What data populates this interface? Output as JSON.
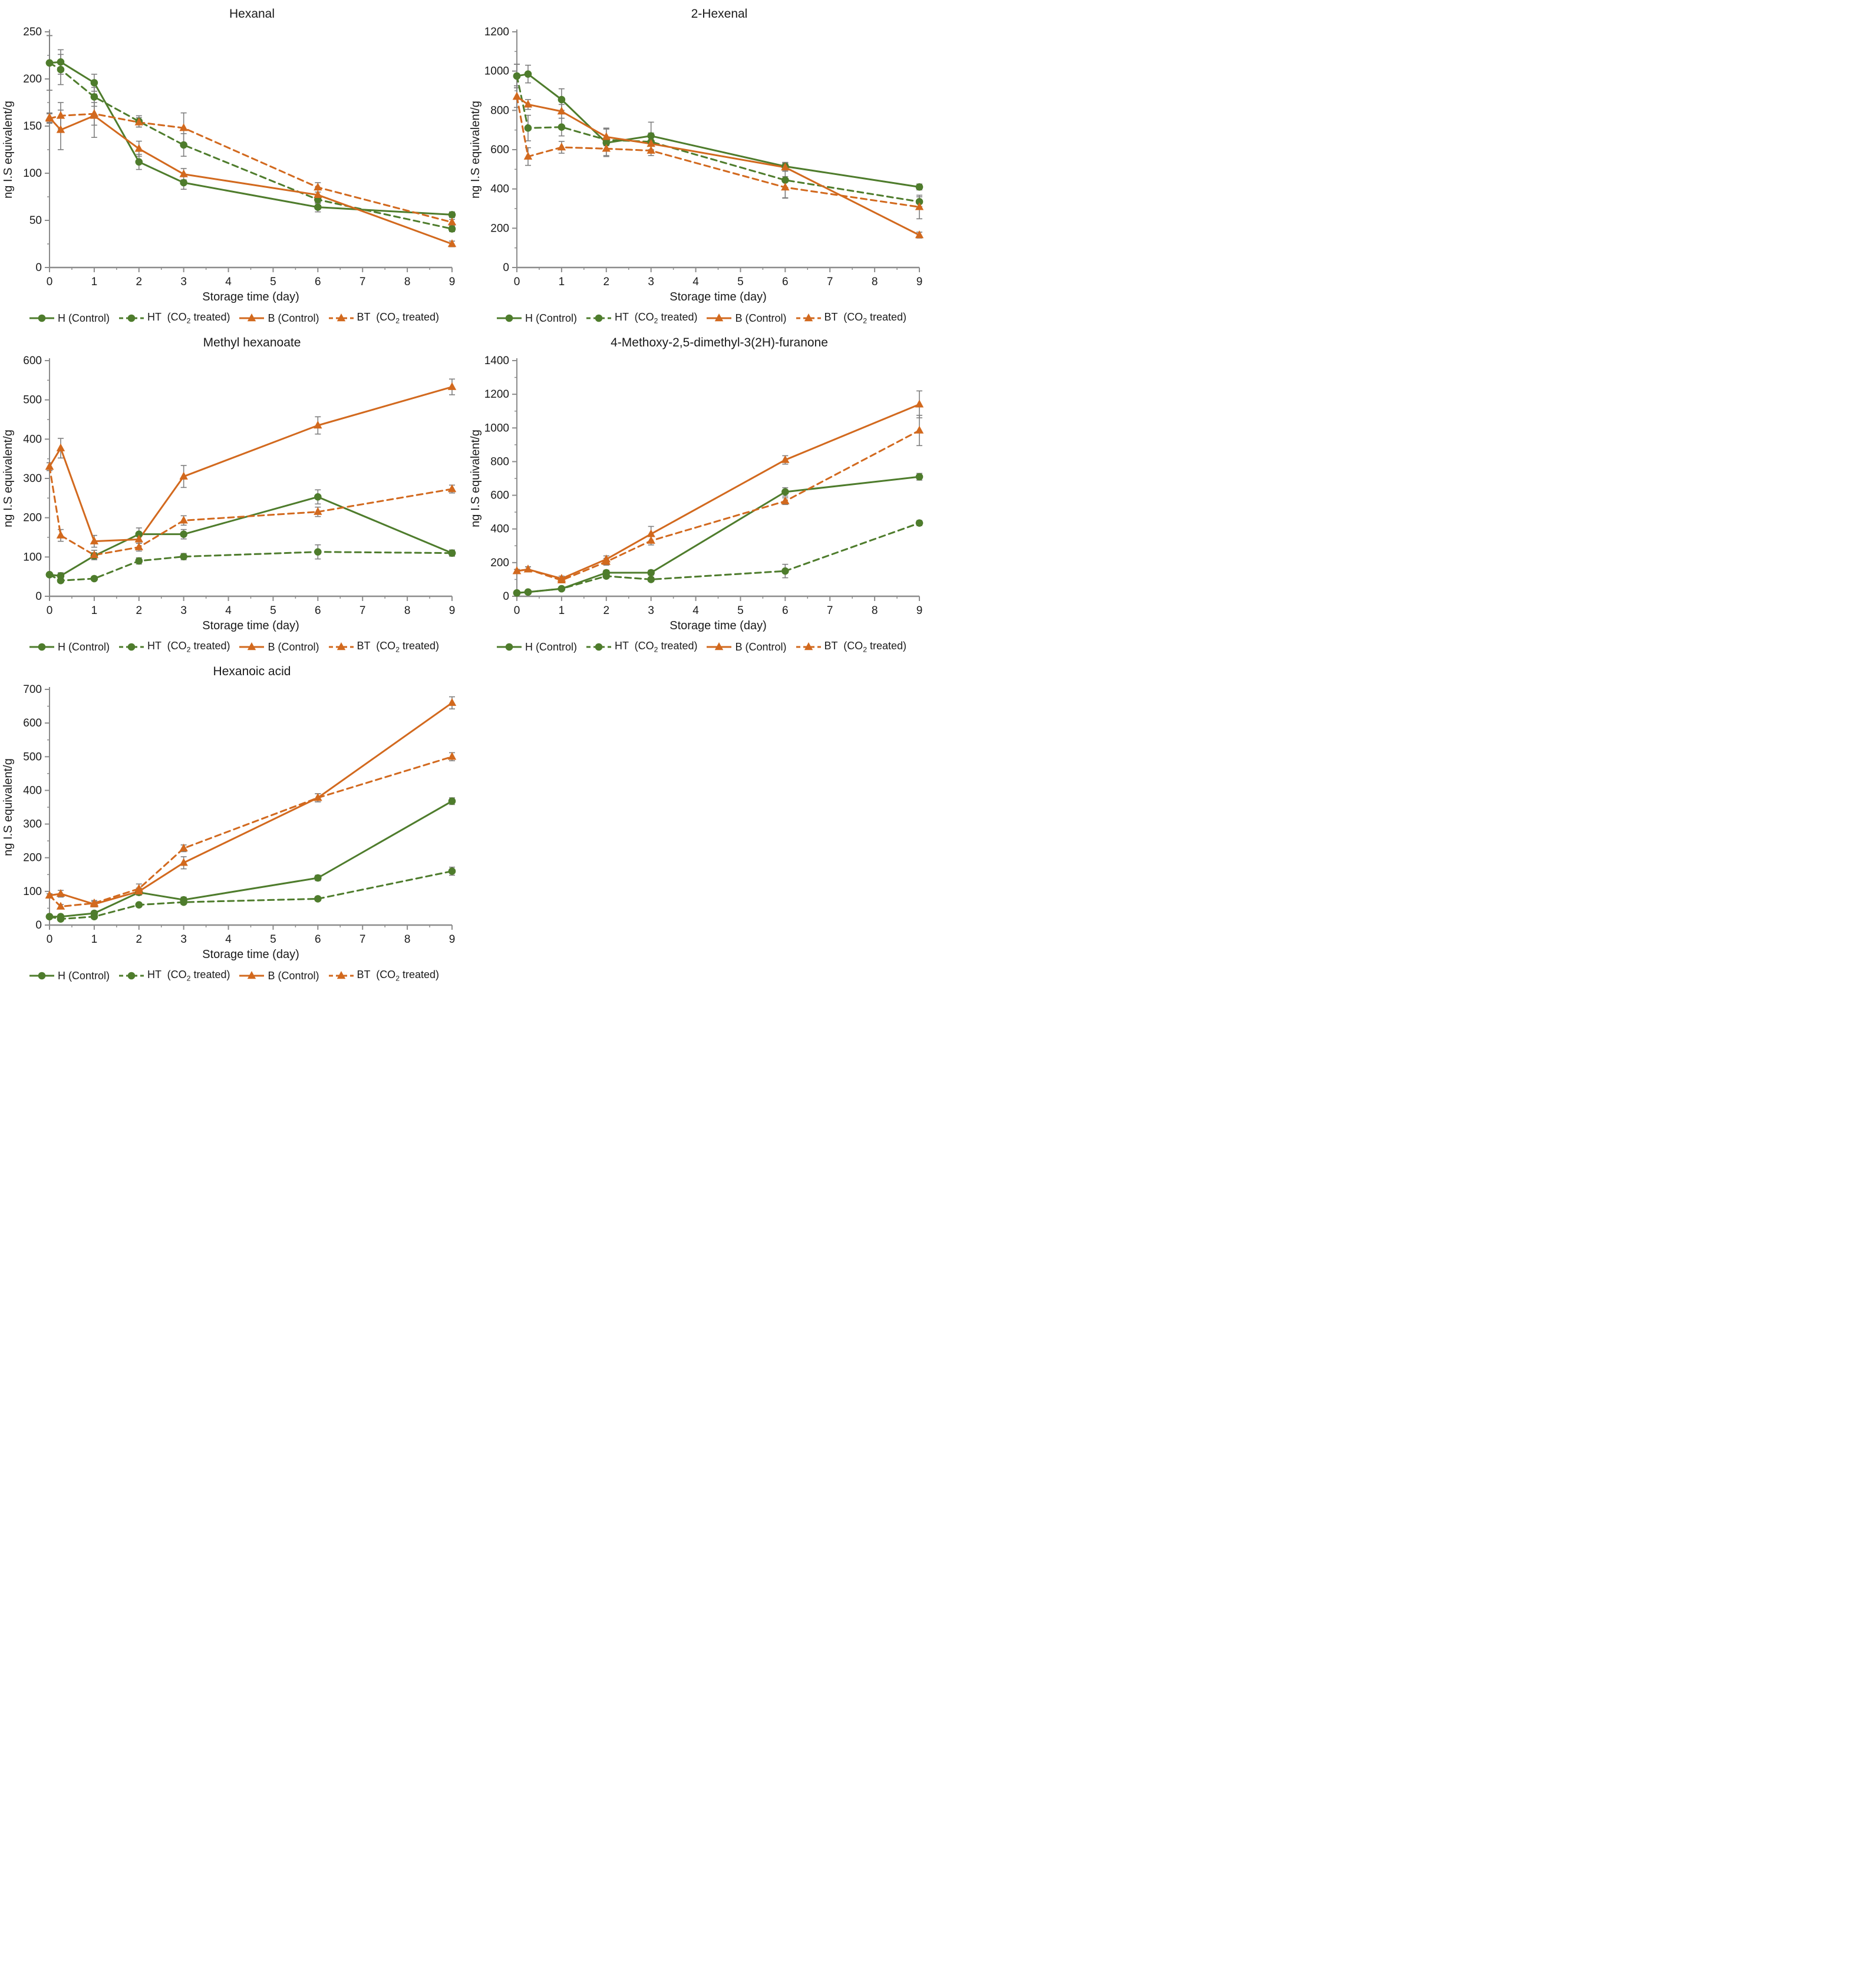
{
  "page": {
    "background": "#ffffff"
  },
  "colors": {
    "green": "#4e7c2c",
    "orange": "#d2691e",
    "error_bar": "#7f7f7f",
    "axis_line": "#8c8c8c",
    "tick_text": "#1a1a1a",
    "title_text": "#1a1a1a"
  },
  "series_styles": {
    "H": {
      "label": "H (Control)",
      "color": "#4e7c2c",
      "line": "solid",
      "marker": "circle"
    },
    "HT": {
      "label": "HT (CO2 treated)",
      "color": "#4e7c2c",
      "line": "dashed",
      "marker": "circle"
    },
    "B": {
      "label": "B (Control)",
      "color": "#d2691e",
      "line": "solid",
      "marker": "triangle"
    },
    "BT": {
      "label": "BT (CO2 treated)",
      "color": "#d2691e",
      "line": "dashed",
      "marker": "triangle"
    }
  },
  "legend": {
    "position": "bottom",
    "items": [
      {
        "key": "H",
        "pre": "H (Control)"
      },
      {
        "key": "HT",
        "pre": "HT  (CO",
        "sub": "2",
        "post": " treated)"
      },
      {
        "key": "B",
        "pre": "B (Control)"
      },
      {
        "key": "BT",
        "pre": "BT  (CO",
        "sub": "2",
        "post": " treated)"
      }
    ]
  },
  "chart_data": [
    {
      "type": "line",
      "title": "Hexanal",
      "xlabel": "Storage time (day)",
      "ylabel": "ng I.S equivalent/g",
      "xlim": [
        0,
        9
      ],
      "xticks": [
        0,
        1,
        2,
        3,
        4,
        5,
        6,
        7,
        8,
        9
      ],
      "ylim": [
        0,
        250
      ],
      "ytick_step": 50,
      "grid": false,
      "x": [
        0,
        0.25,
        1,
        2,
        3,
        6,
        9
      ],
      "series": [
        {
          "key": "H",
          "name": "H (Control)",
          "values": [
            217,
            218,
            196,
            112,
            90,
            64,
            56
          ],
          "errors": [
            29,
            13,
            9,
            8,
            7,
            5,
            3
          ]
        },
        {
          "key": "HT",
          "name": "HT (CO2 treated)",
          "values": [
            217,
            210,
            181,
            155,
            130,
            72,
            41
          ],
          "errors": [
            29,
            16,
            10,
            6,
            12,
            4,
            3
          ]
        },
        {
          "key": "B",
          "name": "B (Control)",
          "values": [
            159,
            146,
            161,
            126,
            99,
            77,
            25
          ],
          "errors": [
            5,
            21,
            23,
            8,
            6,
            8,
            3
          ]
        },
        {
          "key": "BT",
          "name": "BT (CO2 treated)",
          "values": [
            158,
            161,
            163,
            154,
            148,
            85,
            48
          ],
          "errors": [
            5,
            14,
            12,
            5,
            16,
            5,
            3
          ]
        }
      ]
    },
    {
      "type": "line",
      "title": "2-Hexenal",
      "xlabel": "Storage time (day)",
      "ylabel": "ng I.S equivalent/g",
      "xlim": [
        0,
        9
      ],
      "xticks": [
        0,
        1,
        2,
        3,
        4,
        5,
        6,
        7,
        8,
        9
      ],
      "ylim": [
        0,
        1200
      ],
      "ytick_step": 200,
      "grid": false,
      "x": [
        0,
        0.25,
        1,
        2,
        3,
        6,
        9
      ],
      "series": [
        {
          "key": "H",
          "name": "H (Control)",
          "values": [
            975,
            985,
            855,
            635,
            670,
            515,
            410
          ],
          "errors": [
            60,
            45,
            55,
            70,
            70,
            20,
            15
          ]
        },
        {
          "key": "HT",
          "name": "HT (CO2 treated)",
          "values": [
            975,
            710,
            715,
            650,
            640,
            445,
            335
          ],
          "errors": [
            60,
            65,
            45,
            55,
            45,
            90,
            25
          ]
        },
        {
          "key": "B",
          "name": "B (Control)",
          "values": [
            870,
            830,
            795,
            665,
            630,
            510,
            165
          ],
          "errors": [
            55,
            25,
            35,
            45,
            40,
            20,
            15
          ]
        },
        {
          "key": "BT",
          "name": "BT (CO2 treated)",
          "values": [
            870,
            565,
            612,
            605,
            595,
            408,
            308
          ],
          "errors": [
            55,
            45,
            30,
            35,
            25,
            55,
            60
          ]
        }
      ]
    },
    {
      "type": "line",
      "title": "Methyl hexanoate",
      "xlabel": "Storage time (day)",
      "ylabel": "ng I.S equivalent/g",
      "xlim": [
        0,
        9
      ],
      "xticks": [
        0,
        1,
        2,
        3,
        4,
        5,
        6,
        7,
        8,
        9
      ],
      "ylim": [
        0,
        600
      ],
      "ytick_step": 100,
      "grid": false,
      "x": [
        0,
        0.25,
        1,
        2,
        3,
        6,
        9
      ],
      "series": [
        {
          "key": "H",
          "name": "H (Control)",
          "values": [
            55,
            52,
            103,
            158,
            158,
            253,
            110
          ],
          "errors": [
            5,
            8,
            8,
            16,
            12,
            18,
            8
          ]
        },
        {
          "key": "HT",
          "name": "HT (CO2 treated)",
          "values": [
            55,
            40,
            45,
            90,
            101,
            113,
            110
          ],
          "errors": [
            5,
            5,
            5,
            8,
            8,
            18,
            6
          ]
        },
        {
          "key": "B",
          "name": "B (Control)",
          "values": [
            330,
            377,
            140,
            145,
            305,
            435,
            533
          ],
          "errors": [
            10,
            25,
            15,
            10,
            28,
            22,
            20
          ]
        },
        {
          "key": "BT",
          "name": "BT (CO2 treated)",
          "values": [
            330,
            155,
            105,
            125,
            193,
            215,
            273
          ],
          "errors": [
            10,
            15,
            12,
            10,
            12,
            12,
            10
          ]
        }
      ]
    },
    {
      "type": "line",
      "title": "4-Methoxy-2,5-dimethyl-3(2H)-furanone",
      "xlabel": "Storage time (day)",
      "ylabel": "ng I.S equivalent/g",
      "xlim": [
        0,
        9
      ],
      "xticks": [
        0,
        1,
        2,
        3,
        4,
        5,
        6,
        7,
        8,
        9
      ],
      "ylim": [
        0,
        1400
      ],
      "ytick_step": 200,
      "grid": false,
      "x": [
        0,
        0.25,
        1,
        2,
        3,
        6,
        9
      ],
      "series": [
        {
          "key": "H",
          "name": "H (Control)",
          "values": [
            20,
            25,
            45,
            140,
            140,
            620,
            710
          ],
          "errors": [
            6,
            6,
            8,
            15,
            15,
            25,
            20
          ]
        },
        {
          "key": "HT",
          "name": "HT (CO2 treated)",
          "values": [
            20,
            25,
            45,
            120,
            100,
            150,
            435
          ],
          "errors": [
            6,
            6,
            8,
            12,
            12,
            40,
            15
          ]
        },
        {
          "key": "B",
          "name": "B (Control)",
          "values": [
            150,
            160,
            105,
            220,
            370,
            810,
            1140
          ],
          "errors": [
            10,
            15,
            15,
            20,
            45,
            25,
            80
          ]
        },
        {
          "key": "BT",
          "name": "BT (CO2 treated)",
          "values": [
            150,
            160,
            95,
            205,
            330,
            565,
            985
          ],
          "errors": [
            10,
            15,
            15,
            20,
            25,
            20,
            90
          ]
        }
      ]
    },
    {
      "type": "line",
      "title": "Hexanoic acid",
      "xlabel": "Storage time (day)",
      "ylabel": "ng I.S equivalent/g",
      "xlim": [
        0,
        9
      ],
      "xticks": [
        0,
        1,
        2,
        3,
        4,
        5,
        6,
        7,
        8,
        9
      ],
      "ylim": [
        0,
        700
      ],
      "ytick_step": 100,
      "grid": false,
      "x": [
        0,
        0.25,
        1,
        2,
        3,
        6,
        9
      ],
      "series": [
        {
          "key": "H",
          "name": "H (Control)",
          "values": [
            25,
            25,
            35,
            97,
            75,
            140,
            368
          ],
          "errors": [
            3,
            4,
            6,
            8,
            8,
            8,
            10
          ]
        },
        {
          "key": "HT",
          "name": "HT (CO2 treated)",
          "values": [
            25,
            18,
            25,
            60,
            68,
            78,
            160
          ],
          "errors": [
            3,
            4,
            5,
            6,
            6,
            6,
            12
          ]
        },
        {
          "key": "B",
          "name": "B (Control)",
          "values": [
            88,
            93,
            62,
            100,
            185,
            378,
            660
          ],
          "errors": [
            5,
            10,
            8,
            10,
            18,
            12,
            18
          ]
        },
        {
          "key": "BT",
          "name": "BT (CO2 treated)",
          "values": [
            88,
            55,
            65,
            108,
            228,
            378,
            500
          ],
          "errors": [
            5,
            6,
            8,
            14,
            10,
            12,
            12
          ]
        }
      ]
    }
  ]
}
